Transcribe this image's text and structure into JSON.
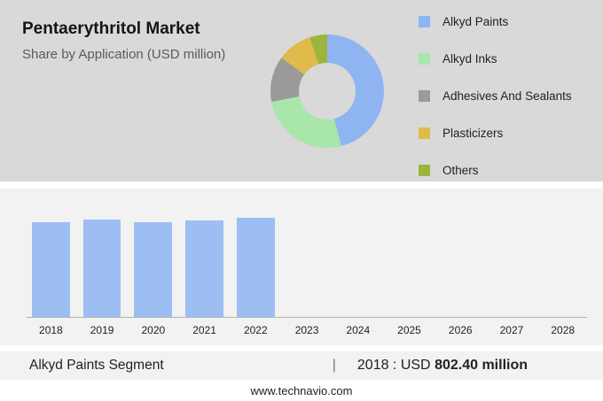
{
  "header": {
    "title": "Pentaerythritol Market",
    "subtitle": "Share by Application (USD million)"
  },
  "chart_data": [
    {
      "type": "pie",
      "donut": true,
      "legend_position": "right",
      "title": "Pentaerythritol Market Share by Application (USD million)",
      "segments": [
        {
          "label": "Alkyd Paints",
          "value": 46,
          "color": "#8eb4f1"
        },
        {
          "label": "Alkyd Inks",
          "value": 26,
          "color": "#a9e6a9"
        },
        {
          "label": "Adhesives And Sealants",
          "value": 13,
          "color": "#9a9a9a"
        },
        {
          "label": "Plasticizers",
          "value": 10,
          "color": "#e0ba4d"
        },
        {
          "label": "Others",
          "value": 5,
          "color": "#9cb53d"
        }
      ]
    },
    {
      "type": "bar",
      "categories": [
        "2018",
        "2019",
        "2020",
        "2021",
        "2022",
        "2023",
        "2024",
        "2025",
        "2026",
        "2027",
        "2028"
      ],
      "values": [
        802.4,
        828,
        808,
        818,
        842
      ],
      "forecast_categories": [
        "2023",
        "2024",
        "2025",
        "2026",
        "2027",
        "2028"
      ],
      "ylim": [
        0,
        1000
      ],
      "xlabel": "",
      "ylabel": "",
      "grid": false,
      "bar_color": "#9dbef2",
      "forecast_hatch_color": "#b7c9ea"
    }
  ],
  "footer": {
    "segment_label": "Alkyd Paints Segment",
    "separator": "|",
    "stat_prefix": "2018 : USD",
    "stat_value": "802.40 million"
  },
  "website": "www.technavio.com"
}
